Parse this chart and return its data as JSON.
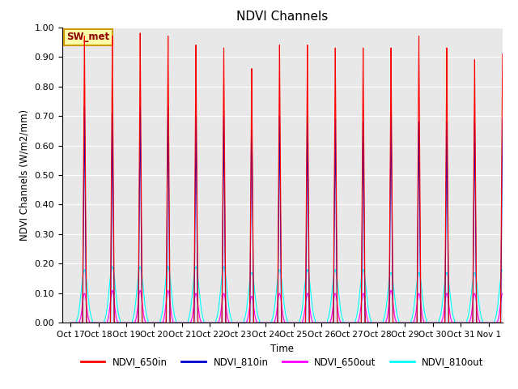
{
  "title": "NDVI Channels",
  "ylabel": "NDVI Channels (W/m2/mm)",
  "xlabel": "Time",
  "ylim": [
    0.0,
    1.0
  ],
  "yticks": [
    0.0,
    0.1,
    0.2,
    0.3,
    0.4,
    0.5,
    0.6,
    0.7,
    0.8,
    0.9,
    1.0
  ],
  "xtick_labels": [
    "Oct 17",
    "Oct 18",
    "Oct 19",
    "Oct 20",
    "Oct 21",
    "Oct 22",
    "Oct 23",
    "Oct 24",
    "Oct 25",
    "Oct 26",
    "Oct 27",
    "Oct 28",
    "Oct 29",
    "Oct 30",
    "Oct 31",
    "Nov 1"
  ],
  "station_label": "SW_met",
  "bg_color": "#e8e8e8",
  "legend": [
    {
      "label": "NDVI_650in",
      "color": "#ff0000"
    },
    {
      "label": "NDVI_810in",
      "color": "#0000cc"
    },
    {
      "label": "NDVI_650out",
      "color": "#ff00ff"
    },
    {
      "label": "NDVI_810out",
      "color": "#00ffff"
    }
  ],
  "peaks_650in": [
    0.97,
    0.97,
    0.98,
    0.97,
    0.94,
    0.93,
    0.86,
    0.94,
    0.94,
    0.93,
    0.93,
    0.93,
    0.97,
    0.93,
    0.89,
    0.91
  ],
  "peaks_810in": [
    0.73,
    0.71,
    0.73,
    0.73,
    0.7,
    0.7,
    0.75,
    0.7,
    0.7,
    0.69,
    0.68,
    0.72,
    0.68,
    0.68,
    0.69,
    0.69
  ],
  "peaks_650out": [
    0.1,
    0.11,
    0.11,
    0.11,
    0.1,
    0.1,
    0.09,
    0.1,
    0.1,
    0.1,
    0.1,
    0.11,
    0.1,
    0.1,
    0.1,
    0.1
  ],
  "peaks_810out": [
    0.18,
    0.19,
    0.19,
    0.19,
    0.19,
    0.19,
    0.17,
    0.18,
    0.18,
    0.18,
    0.18,
    0.17,
    0.17,
    0.17,
    0.17,
    0.18
  ],
  "num_days": 16,
  "figsize": [
    6.4,
    4.8
  ],
  "dpi": 100
}
